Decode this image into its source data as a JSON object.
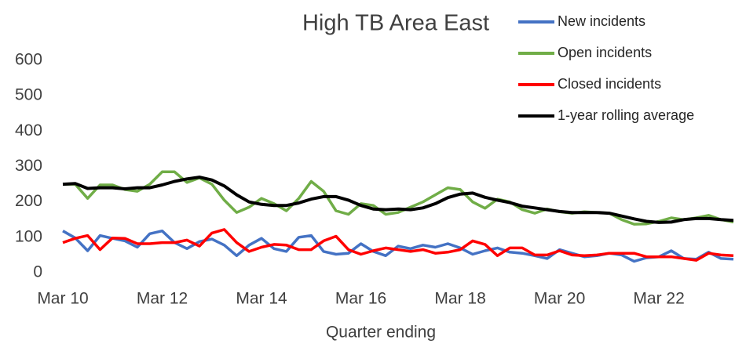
{
  "chart_data": {
    "type": "line",
    "title": "High TB Area East",
    "x_label": "Quarter ending",
    "categories": [
      "Mar 10",
      null,
      null,
      null,
      null,
      null,
      null,
      null,
      "Mar 12",
      null,
      null,
      null,
      null,
      null,
      null,
      null,
      "Mar 14",
      null,
      null,
      null,
      null,
      null,
      null,
      null,
      "Mar 16",
      null,
      null,
      null,
      null,
      null,
      null,
      null,
      "Mar 18",
      null,
      null,
      null,
      null,
      null,
      null,
      null,
      "Mar 20",
      null,
      null,
      null,
      null,
      null,
      null,
      null,
      "Mar 22",
      null,
      null,
      null,
      null,
      null,
      null
    ],
    "ylim": [
      0,
      600
    ],
    "yticks": [
      0,
      100,
      200,
      300,
      400,
      500,
      600
    ],
    "grid": false,
    "legend": "top-right",
    "series": [
      {
        "name": "New incidents",
        "color": "#4472c4",
        "values": [
          118,
          98,
          62,
          105,
          97,
          90,
          72,
          110,
          118,
          85,
          68,
          88,
          95,
          78,
          48,
          78,
          97,
          68,
          60,
          100,
          105,
          60,
          52,
          55,
          82,
          60,
          48,
          75,
          68,
          78,
          72,
          82,
          70,
          52,
          62,
          70,
          58,
          55,
          48,
          40,
          65,
          55,
          45,
          48,
          55,
          50,
          32,
          42,
          45,
          62,
          40,
          38,
          58,
          40,
          38
        ]
      },
      {
        "name": "Open incidents",
        "color": "#70ad47",
        "values": [
          250,
          250,
          210,
          248,
          248,
          235,
          230,
          250,
          285,
          285,
          255,
          268,
          250,
          205,
          170,
          185,
          210,
          195,
          175,
          210,
          258,
          230,
          175,
          165,
          195,
          190,
          165,
          170,
          185,
          200,
          220,
          240,
          235,
          200,
          182,
          208,
          200,
          178,
          168,
          180,
          172,
          168,
          172,
          170,
          168,
          150,
          137,
          138,
          145,
          155,
          150,
          155,
          162,
          150,
          143
        ]
      },
      {
        "name": "Closed incidents",
        "color": "#ff0000",
        "values": [
          85,
          97,
          105,
          65,
          98,
          97,
          82,
          82,
          85,
          85,
          92,
          75,
          112,
          122,
          85,
          60,
          72,
          80,
          78,
          65,
          65,
          90,
          103,
          65,
          52,
          62,
          70,
          65,
          60,
          65,
          55,
          58,
          65,
          90,
          80,
          48,
          70,
          70,
          50,
          50,
          62,
          50,
          48,
          50,
          55,
          55,
          55,
          45,
          45,
          45,
          40,
          35,
          55,
          50,
          48
        ]
      },
      {
        "name": "1-year rolling average",
        "color": "#000000",
        "values": [
          250,
          252,
          238,
          240,
          240,
          237,
          240,
          240,
          248,
          258,
          265,
          270,
          262,
          245,
          220,
          200,
          193,
          190,
          190,
          197,
          208,
          215,
          215,
          205,
          190,
          180,
          178,
          180,
          178,
          183,
          195,
          212,
          222,
          225,
          213,
          205,
          198,
          188,
          183,
          178,
          173,
          170,
          170,
          170,
          168,
          160,
          152,
          145,
          142,
          143,
          150,
          153,
          153,
          150,
          148
        ]
      }
    ]
  }
}
